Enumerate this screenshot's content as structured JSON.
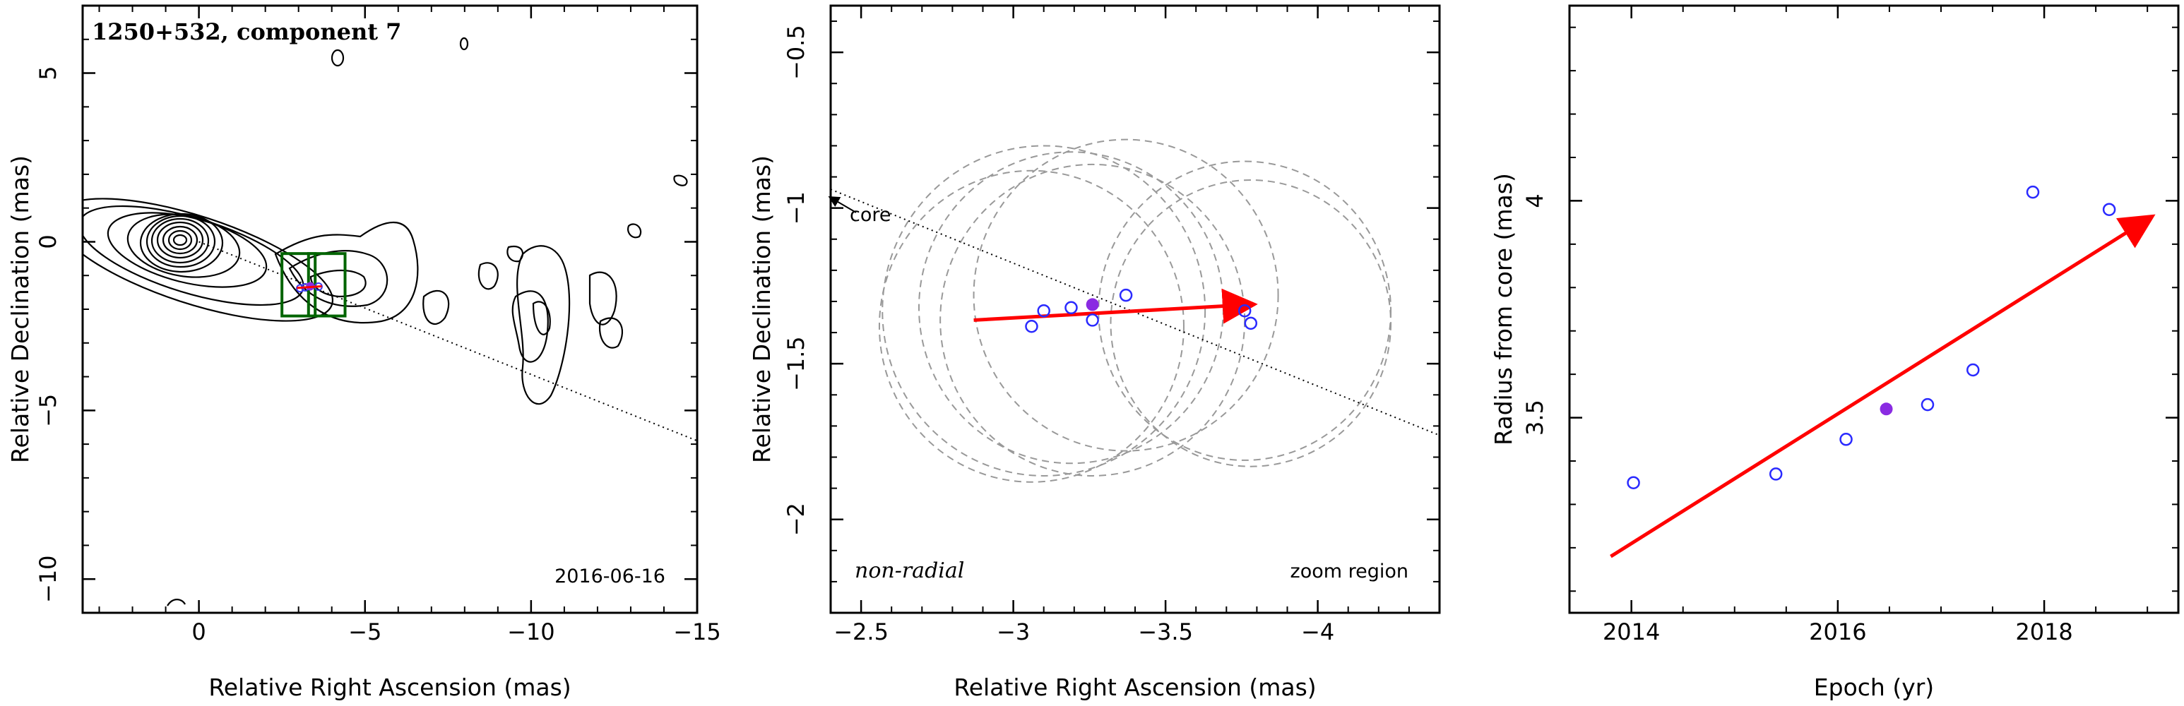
{
  "chart_data": [
    {
      "type": "contour",
      "title": "1250+532, component 7",
      "xlabel": "Relative Right Ascension (mas)",
      "ylabel": "Relative Declination (mas)",
      "xlim": [
        3.5,
        -15
      ],
      "ylim": [
        -11,
        7
      ],
      "xticks": [
        0,
        -5,
        -10,
        -15
      ],
      "yticks": [
        5,
        0,
        -5,
        -10
      ],
      "date_label": "2016-06-16",
      "component_points": [
        {
          "x": -3.05,
          "y": -1.38
        },
        {
          "x": -3.2,
          "y": -1.35
        },
        {
          "x": -3.35,
          "y": -1.32
        },
        {
          "x": -3.6,
          "y": -1.33
        }
      ],
      "jet_axis": {
        "x1": 0,
        "y1": 0,
        "x2": -15,
        "y2": -5.9
      },
      "zoom_boxes": [
        {
          "x1": -2.5,
          "x2": -3.5,
          "y1": -0.35,
          "y2": -2.2
        },
        {
          "x1": -3.3,
          "x2": -4.4,
          "y1": -0.35,
          "y2": -2.2
        }
      ]
    },
    {
      "type": "scatter",
      "xlabel": "Relative Right Ascension (mas)",
      "ylabel": "Relative Declination (mas)",
      "xlim": [
        -2.4,
        -4.4
      ],
      "ylim": [
        -2.3,
        -0.35
      ],
      "xticks": [
        -2.5,
        -3,
        -3.5,
        -4
      ],
      "yticks": [
        -0.5,
        -1,
        -1.5,
        -2
      ],
      "core_label": "core",
      "motion_label": "non-radial",
      "region_label": "zoom region",
      "points": [
        {
          "x": -3.06,
          "y": -1.38
        },
        {
          "x": -3.1,
          "y": -1.33
        },
        {
          "x": -3.19,
          "y": -1.32
        },
        {
          "x": -3.26,
          "y": -1.36
        },
        {
          "x": -3.37,
          "y": -1.28
        },
        {
          "x": -3.76,
          "y": -1.33
        },
        {
          "x": -3.78,
          "y": -1.37
        }
      ],
      "highlight_point": {
        "x": -3.26,
        "y": -1.31
      },
      "velocity_vector": {
        "x1": -2.87,
        "y1": -1.36,
        "x2": -3.78,
        "y2": -1.31
      },
      "jet_axis": {
        "x1": -2.4,
        "y1": -0.94,
        "x2": -4.4,
        "y2": -1.73
      },
      "uncertainty_circles": [
        {
          "x": -3.06,
          "y": -1.38,
          "r": 0.5
        },
        {
          "x": -3.1,
          "y": -1.33,
          "r": 0.53
        },
        {
          "x": -3.19,
          "y": -1.32,
          "r": 0.5
        },
        {
          "x": -3.26,
          "y": -1.36,
          "r": 0.5
        },
        {
          "x": -3.37,
          "y": -1.28,
          "r": 0.5
        },
        {
          "x": -3.76,
          "y": -1.33,
          "r": 0.48
        },
        {
          "x": -3.78,
          "y": -1.37,
          "r": 0.46
        }
      ]
    },
    {
      "type": "scatter",
      "xlabel": "Epoch (yr)",
      "ylabel": "Radius from core (mas)",
      "xlim": [
        2013.4,
        2019.3
      ],
      "ylim": [
        3.05,
        4.45
      ],
      "xticks": [
        2014,
        2016,
        2018
      ],
      "yticks": [
        3.5,
        4
      ],
      "points": [
        {
          "x": 2014.02,
          "y": 3.35
        },
        {
          "x": 2015.4,
          "y": 3.37
        },
        {
          "x": 2016.08,
          "y": 3.45
        },
        {
          "x": 2016.87,
          "y": 3.53
        },
        {
          "x": 2017.31,
          "y": 3.61
        },
        {
          "x": 2017.89,
          "y": 4.02
        },
        {
          "x": 2018.63,
          "y": 3.98
        }
      ],
      "highlight_point": {
        "x": 2016.47,
        "y": 3.52
      },
      "fit_vector": {
        "x1": 2013.8,
        "y1": 3.18,
        "x2": 2019.02,
        "y2": 3.96
      }
    }
  ]
}
